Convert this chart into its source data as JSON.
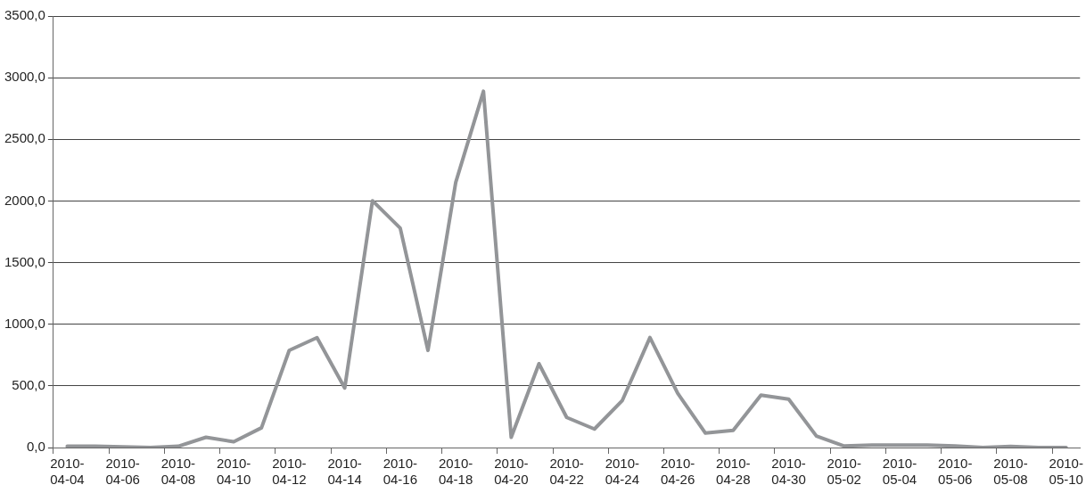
{
  "chart_data": {
    "type": "line",
    "categories": [
      "2010-04-04",
      null,
      "2010-04-06",
      null,
      "2010-04-08",
      null,
      "2010-04-10",
      null,
      "2010-04-12",
      null,
      "2010-04-14",
      null,
      "2010-04-16",
      null,
      "2010-04-18",
      null,
      "2010-04-20",
      null,
      "2010-04-22",
      null,
      "2010-04-24",
      null,
      "2010-04-26",
      null,
      "2010-04-28",
      null,
      "2010-04-30",
      null,
      "2010-05-02",
      null,
      "2010-05-04",
      null,
      "2010-05-06",
      null,
      "2010-05-08",
      null,
      "2010-05-10"
    ],
    "series": [
      {
        "color": "#939598",
        "values": [
          10,
          10,
          5,
          0,
          10,
          83,
          47,
          160,
          788,
          891,
          483,
          2002,
          1780,
          788,
          2150,
          2890,
          83,
          680,
          244,
          150,
          380,
          892,
          440,
          117,
          139,
          425,
          392,
          93,
          12,
          20,
          20,
          20,
          12,
          0,
          9,
          0,
          0
        ]
      }
    ],
    "ylim": [
      0,
      3500
    ],
    "yticks": [
      {
        "value": 0,
        "label": "0,0"
      },
      {
        "value": 500,
        "label": "500,0"
      },
      {
        "value": 1000,
        "label": "1000,0"
      },
      {
        "value": 1500,
        "label": "1500,0"
      },
      {
        "value": 2000,
        "label": "2000,0"
      },
      {
        "value": 2500,
        "label": "2500,0"
      },
      {
        "value": 3000,
        "label": "3000,0"
      },
      {
        "value": 3500,
        "label": "3500,0"
      }
    ],
    "grid": "y",
    "legend": false,
    "marker": "none",
    "line_style": "solid"
  }
}
